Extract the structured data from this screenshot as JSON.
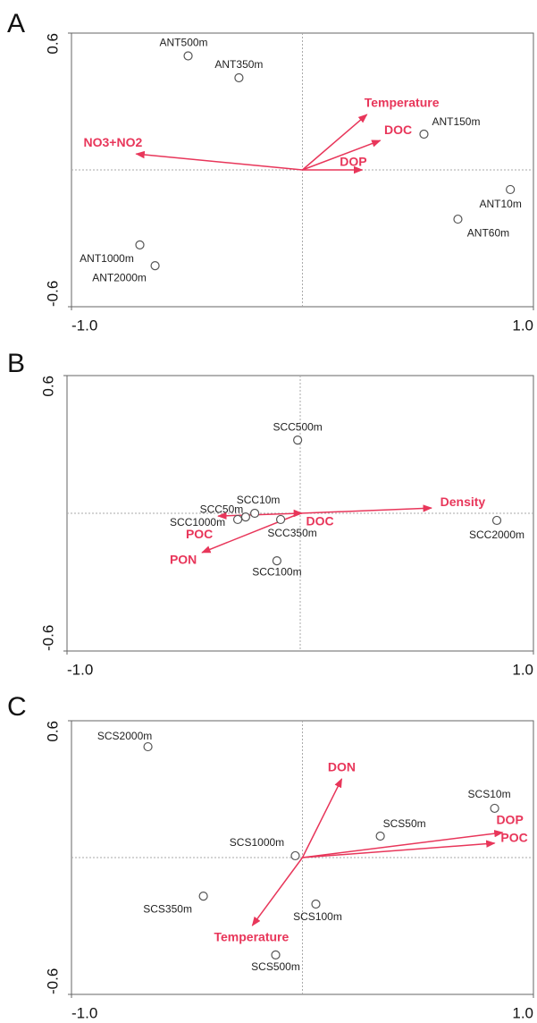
{
  "chart_data": [
    {
      "type": "biplot",
      "panel": "A",
      "xlim": [
        -1,
        1
      ],
      "ylim": [
        -0.6,
        0.6
      ],
      "xticks": [
        {
          "value": -1,
          "label": "-1.0"
        },
        {
          "value": 1,
          "label": "1.0"
        }
      ],
      "yticks": [
        -0.6,
        0.6
      ],
      "points": {
        "names": [
          "ANT500m",
          "ANT350m",
          "ANT150m",
          "ANT10m",
          "ANT60m",
          "ANT1000m",
          "ANT2000m"
        ],
        "x": [
          -0.495,
          -0.275,
          0.526,
          0.9,
          0.673,
          -0.704,
          -0.638
        ],
        "y": [
          0.5,
          0.404,
          0.157,
          -0.086,
          -0.216,
          -0.329,
          -0.42
        ]
      },
      "arrows": {
        "names": [
          "Temperature",
          "DOC",
          "DOP",
          "NO3+NO2"
        ],
        "x": [
          0.279,
          0.337,
          0.259,
          -0.72
        ],
        "y": [
          0.243,
          0.129,
          0.0,
          0.07
        ],
        "color": "#e8365a"
      }
    },
    {
      "type": "biplot",
      "panel": "B",
      "xlim": [
        -1,
        1
      ],
      "ylim": [
        -0.6,
        0.6
      ],
      "xticks": [
        {
          "value": -1,
          "label": "-1.0"
        },
        {
          "value": 1,
          "label": "1.0"
        }
      ],
      "yticks": [
        -0.6,
        0.6
      ],
      "points": {
        "names": [
          "SCC500m",
          "SCC10m",
          "SCC50m",
          "SCC1000m",
          "SCC350m",
          "SCC100m",
          "SCC2000m"
        ],
        "x": [
          -0.011,
          -0.195,
          -0.234,
          -0.268,
          -0.084,
          -0.1,
          0.843
        ],
        "y": [
          0.319,
          0.0,
          -0.016,
          -0.027,
          -0.027,
          -0.207,
          -0.031
        ]
      },
      "arrows": {
        "names": [
          "Density",
          "DOC",
          "POC",
          "PON"
        ],
        "x": [
          0.563,
          0.008,
          -0.352,
          -0.421
        ],
        "y": [
          0.023,
          0.0,
          -0.012,
          -0.171
        ],
        "color": "#e8365a"
      }
    },
    {
      "type": "biplot",
      "panel": "C",
      "xlim": [
        -1,
        1
      ],
      "ylim": [
        -0.6,
        0.6
      ],
      "xticks": [
        {
          "value": -1,
          "label": "-1.0"
        },
        {
          "value": 1,
          "label": "1.0"
        }
      ],
      "yticks": [
        -0.6,
        0.6
      ],
      "points": {
        "names": [
          "SCS2000m",
          "SCS10m",
          "SCS50m",
          "SCS1000m",
          "SCS350m",
          "SCS100m",
          "SCS500m"
        ],
        "x": [
          -0.669,
          0.832,
          0.337,
          -0.031,
          -0.429,
          0.058,
          -0.116
        ],
        "y": [
          0.486,
          0.216,
          0.094,
          0.008,
          -0.169,
          -0.204,
          -0.427
        ]
      },
      "arrows": {
        "names": [
          "DON",
          "DOP",
          "POC",
          "Temperature"
        ],
        "x": [
          0.17,
          0.867,
          0.832,
          -0.217
        ],
        "y": [
          0.345,
          0.11,
          0.063,
          -0.298
        ],
        "color": "#e8365a"
      }
    }
  ]
}
